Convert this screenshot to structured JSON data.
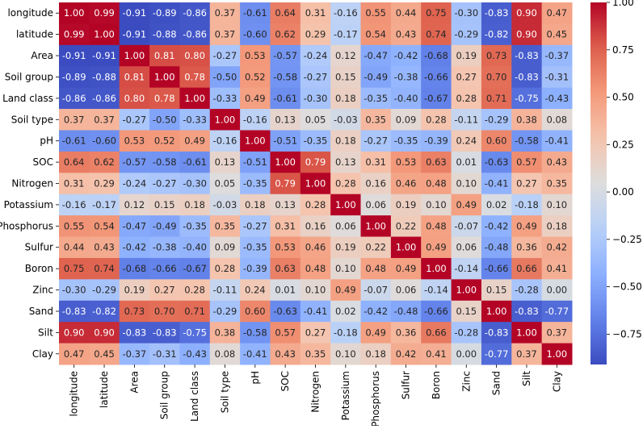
{
  "chart_data": {
    "type": "heatmap",
    "title": "",
    "labels": [
      "longitude",
      "latitude",
      "Area",
      "Soil group",
      "Land class",
      "Soil type",
      "pH",
      "SOC",
      "Nitrogen",
      "Potassium",
      "Phosphorus",
      "Sulfur",
      "Boron",
      "Zinc",
      "Sand",
      "Silt",
      "Clay"
    ],
    "matrix": [
      [
        1.0,
        0.99,
        -0.91,
        -0.89,
        -0.86,
        0.37,
        -0.61,
        0.64,
        0.31,
        -0.16,
        0.55,
        0.44,
        0.75,
        -0.3,
        -0.83,
        0.9,
        0.47
      ],
      [
        0.99,
        1.0,
        -0.91,
        -0.88,
        -0.86,
        0.37,
        -0.6,
        0.62,
        0.29,
        -0.17,
        0.54,
        0.43,
        0.74,
        -0.29,
        -0.82,
        0.9,
        0.45
      ],
      [
        -0.91,
        -0.91,
        1.0,
        0.81,
        0.8,
        -0.27,
        0.53,
        -0.57,
        -0.24,
        0.12,
        -0.47,
        -0.42,
        -0.68,
        0.19,
        0.73,
        -0.83,
        -0.37
      ],
      [
        -0.89,
        -0.88,
        0.81,
        1.0,
        0.78,
        -0.5,
        0.52,
        -0.58,
        -0.27,
        0.15,
        -0.49,
        -0.38,
        -0.66,
        0.27,
        0.7,
        -0.83,
        -0.31
      ],
      [
        -0.86,
        -0.86,
        0.8,
        0.78,
        1.0,
        -0.33,
        0.49,
        -0.61,
        -0.3,
        0.18,
        -0.35,
        -0.4,
        -0.67,
        0.28,
        0.71,
        -0.75,
        -0.43
      ],
      [
        0.37,
        0.37,
        -0.27,
        -0.5,
        -0.33,
        1.0,
        -0.16,
        0.13,
        0.05,
        -0.03,
        0.35,
        0.09,
        0.28,
        -0.11,
        -0.29,
        0.38,
        0.08
      ],
      [
        -0.61,
        -0.6,
        0.53,
        0.52,
        0.49,
        -0.16,
        1.0,
        -0.51,
        -0.35,
        0.18,
        -0.27,
        -0.35,
        -0.39,
        0.24,
        0.6,
        -0.58,
        -0.41
      ],
      [
        0.64,
        0.62,
        -0.57,
        -0.58,
        -0.61,
        0.13,
        -0.51,
        1.0,
        0.79,
        0.13,
        0.31,
        0.53,
        0.63,
        0.01,
        -0.63,
        0.57,
        0.43
      ],
      [
        0.31,
        0.29,
        -0.24,
        -0.27,
        -0.3,
        0.05,
        -0.35,
        0.79,
        1.0,
        0.28,
        0.16,
        0.46,
        0.48,
        0.1,
        -0.41,
        0.27,
        0.35
      ],
      [
        -0.16,
        -0.17,
        0.12,
        0.15,
        0.18,
        -0.03,
        0.18,
        0.13,
        0.28,
        1.0,
        0.06,
        0.19,
        0.1,
        0.49,
        0.02,
        -0.18,
        0.1
      ],
      [
        0.55,
        0.54,
        -0.47,
        -0.49,
        -0.35,
        0.35,
        -0.27,
        0.31,
        0.16,
        0.06,
        1.0,
        0.22,
        0.48,
        -0.07,
        -0.42,
        0.49,
        0.18
      ],
      [
        0.44,
        0.43,
        -0.42,
        -0.38,
        -0.4,
        0.09,
        -0.35,
        0.53,
        0.46,
        0.19,
        0.22,
        1.0,
        0.49,
        0.06,
        -0.48,
        0.36,
        0.42
      ],
      [
        0.75,
        0.74,
        -0.68,
        -0.66,
        -0.67,
        0.28,
        -0.39,
        0.63,
        0.48,
        0.1,
        0.48,
        0.49,
        1.0,
        -0.14,
        -0.66,
        0.66,
        0.41
      ],
      [
        -0.3,
        -0.29,
        0.19,
        0.27,
        0.28,
        -0.11,
        0.24,
        0.01,
        0.1,
        0.49,
        -0.07,
        0.06,
        -0.14,
        1.0,
        0.15,
        -0.28,
        -0.0
      ],
      [
        -0.83,
        -0.82,
        0.73,
        0.7,
        0.71,
        -0.29,
        0.6,
        -0.63,
        -0.41,
        0.02,
        -0.42,
        -0.48,
        -0.66,
        0.15,
        1.0,
        -0.83,
        -0.77
      ],
      [
        0.9,
        0.9,
        -0.83,
        -0.83,
        -0.75,
        0.38,
        -0.58,
        0.57,
        0.27,
        -0.18,
        0.49,
        0.36,
        0.66,
        -0.28,
        -0.83,
        1.0,
        0.37
      ],
      [
        0.47,
        0.45,
        -0.37,
        -0.31,
        -0.43,
        0.08,
        -0.41,
        0.43,
        0.35,
        0.1,
        0.18,
        0.42,
        0.41,
        -0.0,
        -0.77,
        0.37,
        1.0
      ]
    ],
    "value_format": "2 decimals",
    "colormap": "coolwarm",
    "colorbar": {
      "range": [
        -0.91,
        1.0
      ],
      "ticks": [
        1.0,
        0.75,
        0.5,
        0.25,
        0.0,
        -0.25,
        -0.5,
        -0.75
      ],
      "tick_labels": [
        "1.00",
        "0.75",
        "0.50",
        "0.25",
        "0.00",
        "−0.25",
        "−0.50",
        "−0.75"
      ]
    }
  }
}
